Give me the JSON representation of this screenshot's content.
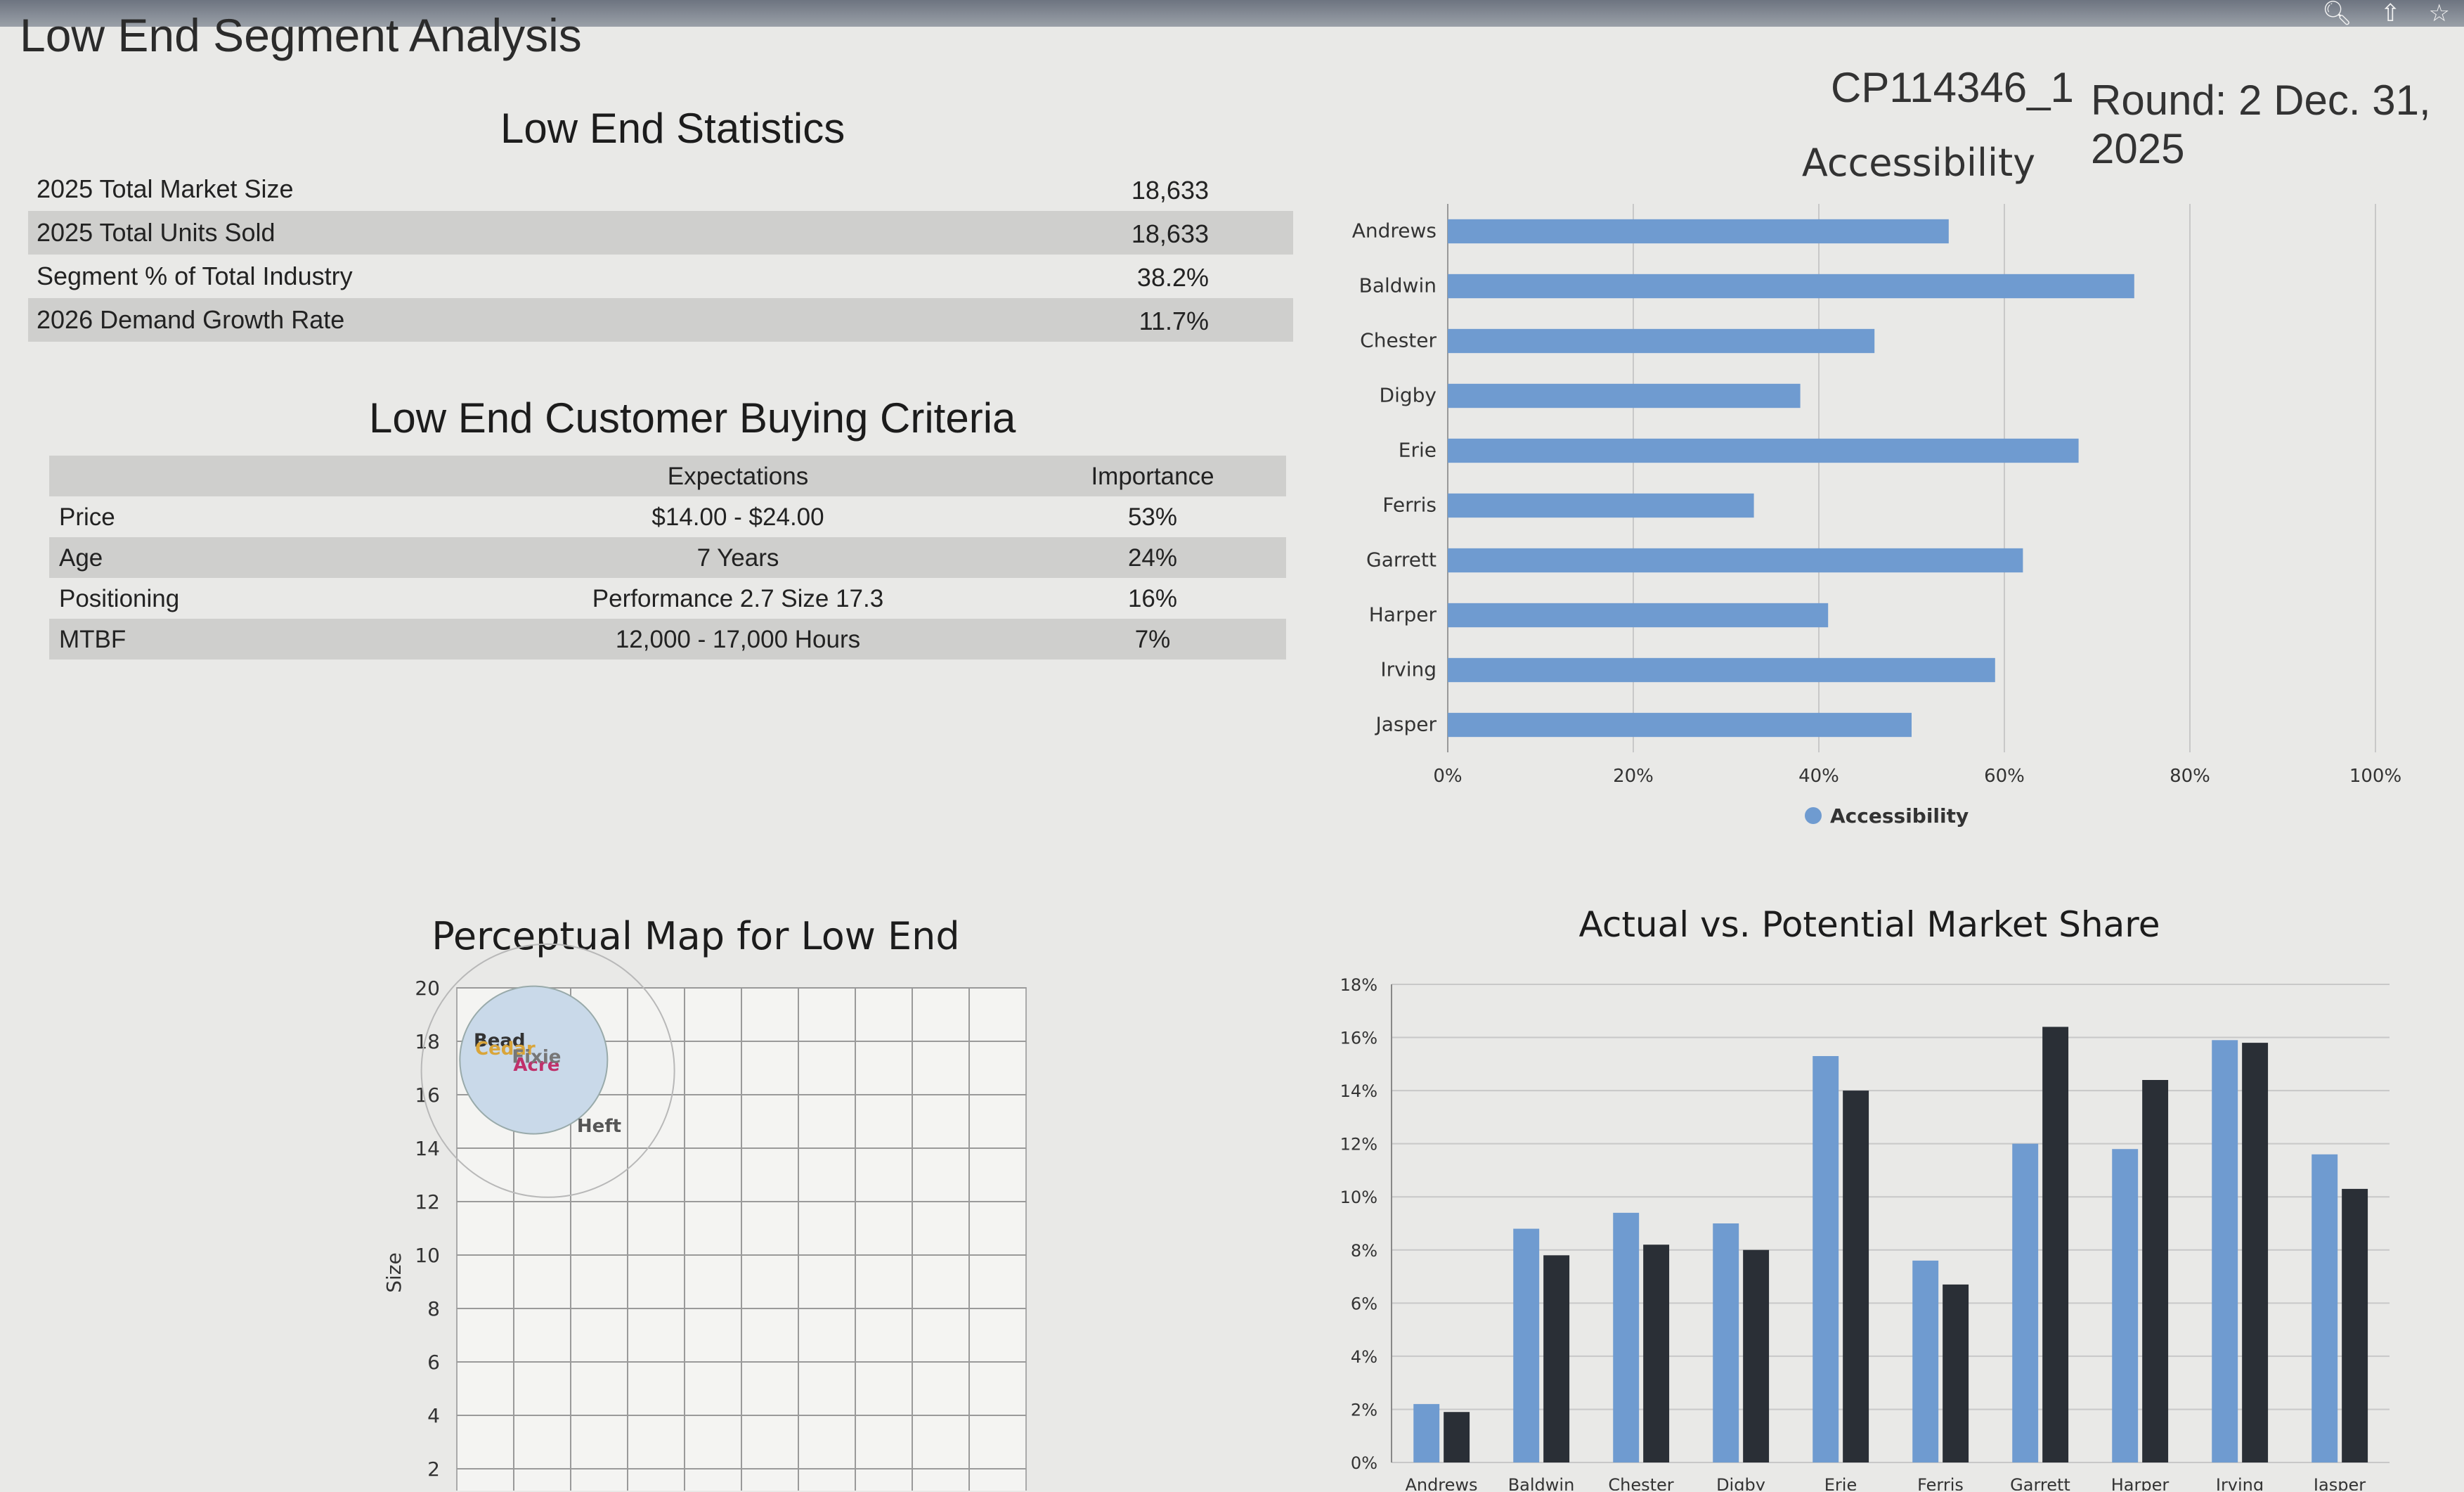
{
  "page_title": "Low End Segment Analysis",
  "header": {
    "id": "CP114346_1",
    "round": "Round: 2 Dec. 31, 2025"
  },
  "statistics": {
    "title": "Low End Statistics",
    "rows": [
      {
        "label": "2025 Total Market Size",
        "value": "18,633"
      },
      {
        "label": "2025 Total Units Sold",
        "value": "18,633"
      },
      {
        "label": "Segment % of Total Industry",
        "value": "38.2%"
      },
      {
        "label": "2026 Demand Growth Rate",
        "value": "11.7%"
      }
    ]
  },
  "criteria": {
    "title": "Low End Customer Buying Criteria",
    "headers": {
      "expectations": "Expectations",
      "importance": "Importance"
    },
    "rows": [
      {
        "name": "Price",
        "expectation": "$14.00 - $24.00",
        "importance": "53%"
      },
      {
        "name": "Age",
        "expectation": "7 Years",
        "importance": "24%"
      },
      {
        "name": "Positioning",
        "expectation": "Performance 2.7 Size 17.3",
        "importance": "16%"
      },
      {
        "name": "MTBF",
        "expectation": "12,000 - 17,000 Hours",
        "importance": "7%"
      }
    ]
  },
  "colors": {
    "bar_blue": "#6f9bd0",
    "bar_dark": "#2a2f36",
    "grid": "#c8c8c8"
  },
  "chart_data": [
    {
      "id": "accessibility",
      "type": "bar",
      "orientation": "horizontal",
      "title": "Accessibility",
      "categories": [
        "Andrews",
        "Baldwin",
        "Chester",
        "Digby",
        "Erie",
        "Ferris",
        "Garrett",
        "Harper",
        "Irving",
        "Jasper"
      ],
      "series": [
        {
          "name": "Accessibility",
          "values": [
            54,
            74,
            46,
            38,
            68,
            33,
            62,
            41,
            59,
            50
          ]
        }
      ],
      "xlim": [
        0,
        100
      ],
      "ticks": [
        "0%",
        "20%",
        "40%",
        "60%",
        "80%",
        "100%"
      ],
      "legend": "bottom"
    },
    {
      "id": "market-share",
      "type": "bar",
      "title": "Actual vs. Potential Market Share",
      "categories": [
        "Andrews",
        "Baldwin",
        "Chester",
        "Digby",
        "Erie",
        "Ferris",
        "Garrett",
        "Harper",
        "Irving",
        "Jasper"
      ],
      "series": [
        {
          "name": "Actual",
          "values": [
            2.2,
            8.8,
            9.4,
            9.0,
            15.3,
            7.6,
            12.0,
            11.8,
            15.9,
            11.6
          ]
        },
        {
          "name": "Potential",
          "values": [
            1.9,
            7.8,
            8.2,
            8.0,
            14.0,
            6.7,
            16.4,
            14.4,
            15.8,
            10.3
          ]
        }
      ],
      "ylim": [
        0,
        18
      ],
      "ticks": [
        "0%",
        "2%",
        "4%",
        "6%",
        "8%",
        "10%",
        "12%",
        "14%",
        "16%",
        "18%"
      ]
    },
    {
      "id": "perceptual-map",
      "type": "scatter",
      "title": "Perceptual Map for Low End",
      "ylabel": "Size",
      "ylim": [
        0,
        20
      ],
      "y_ticks": [
        "2",
        "4",
        "6",
        "8",
        "10",
        "12",
        "14",
        "16",
        "18",
        "20"
      ],
      "points": [
        {
          "label": "Bead",
          "x": 1.5,
          "y": 17.8
        },
        {
          "label": "Cedar",
          "x": 1.7,
          "y": 17.5
        },
        {
          "label": "Acre",
          "x": 2.8,
          "y": 16.9
        },
        {
          "label": "Fixie",
          "x": 2.8,
          "y": 17.2
        },
        {
          "label": "Heft",
          "x": 5.0,
          "y": 14.6
        }
      ]
    }
  ]
}
